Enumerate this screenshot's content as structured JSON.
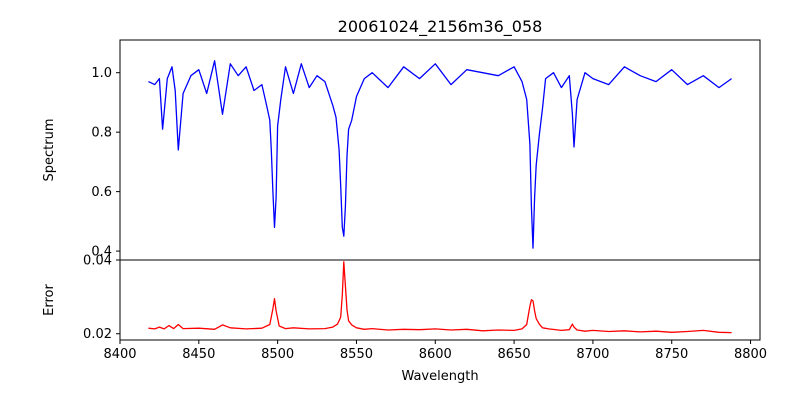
{
  "chart_data": {
    "type": "line",
    "title": "20061024_2156m36_058",
    "xlabel": "Wavelength",
    "xlim": [
      8400,
      8806
    ],
    "xticks": [
      "8400",
      "8450",
      "8500",
      "8550",
      "8600",
      "8650",
      "8700",
      "8750",
      "8800"
    ],
    "panels": [
      {
        "ylabel": "Spectrum",
        "ylim": [
          0.37,
          1.11
        ],
        "yticks": [
          "0.4",
          "0.6",
          "0.8",
          "1.0"
        ],
        "series": [
          {
            "color": "#0000ff",
            "x": [
              8418,
              8422,
              8425,
              8427,
              8430,
              8433,
              8435,
              8437,
              8440,
              8445,
              8450,
              8455,
              8460,
              8465,
              8470,
              8475,
              8480,
              8485,
              8490,
              8493,
              8495,
              8496,
              8497,
              8498,
              8499,
              8500,
              8502,
              8505,
              8510,
              8515,
              8520,
              8525,
              8530,
              8535,
              8537,
              8539,
              8540,
              8541,
              8542,
              8543,
              8544,
              8545,
              8547,
              8550,
              8555,
              8560,
              8570,
              8580,
              8590,
              8600,
              8610,
              8620,
              8630,
              8640,
              8650,
              8655,
              8658,
              8660,
              8661,
              8662,
              8663,
              8664,
              8666,
              8668,
              8670,
              8675,
              8680,
              8685,
              8687,
              8688,
              8690,
              8695,
              8700,
              8710,
              8720,
              8730,
              8740,
              8750,
              8760,
              8770,
              8780,
              8788
            ],
            "y": [
              0.97,
              0.96,
              0.98,
              0.81,
              0.98,
              1.02,
              0.94,
              0.74,
              0.93,
              0.99,
              1.01,
              0.93,
              1.04,
              0.86,
              1.03,
              0.99,
              1.02,
              0.94,
              0.96,
              0.89,
              0.84,
              0.74,
              0.6,
              0.48,
              0.58,
              0.82,
              0.91,
              1.02,
              0.93,
              1.03,
              0.95,
              0.99,
              0.97,
              0.89,
              0.85,
              0.74,
              0.62,
              0.48,
              0.45,
              0.55,
              0.72,
              0.81,
              0.84,
              0.92,
              0.98,
              1.0,
              0.95,
              1.02,
              0.98,
              1.03,
              0.96,
              1.01,
              1.0,
              0.99,
              1.02,
              0.97,
              0.91,
              0.76,
              0.55,
              0.41,
              0.58,
              0.69,
              0.79,
              0.88,
              0.98,
              1.0,
              0.95,
              0.99,
              0.86,
              0.75,
              0.91,
              1.0,
              0.98,
              0.96,
              1.02,
              0.99,
              0.97,
              1.01,
              0.96,
              0.99,
              0.95,
              0.98
            ]
          }
        ]
      },
      {
        "ylabel": "Error",
        "ylim": [
          0.0183,
          0.04
        ],
        "yticks": [
          "0.02",
          "0.04"
        ],
        "series": [
          {
            "color": "#ff0000",
            "x": [
              8418,
              8422,
              8425,
              8428,
              8431,
              8434,
              8437,
              8440,
              8450,
              8460,
              8465,
              8470,
              8480,
              8490,
              8495,
              8497,
              8498,
              8499,
              8501,
              8505,
              8510,
              8520,
              8530,
              8535,
              8538,
              8540,
              8541,
              8542,
              8543,
              8544,
              8545,
              8547,
              8550,
              8555,
              8560,
              8570,
              8580,
              8590,
              8600,
              8610,
              8620,
              8630,
              8640,
              8650,
              8655,
              8658,
              8660,
              8661,
              8662,
              8663,
              8664,
              8666,
              8668,
              8672,
              8680,
              8685,
              8687,
              8688,
              8690,
              8695,
              8700,
              8710,
              8720,
              8730,
              8740,
              8750,
              8760,
              8770,
              8780,
              8788
            ],
            "y": [
              0.0215,
              0.0213,
              0.0218,
              0.0213,
              0.0222,
              0.0214,
              0.0225,
              0.0214,
              0.0215,
              0.0212,
              0.0224,
              0.0216,
              0.0213,
              0.0215,
              0.0225,
              0.0268,
              0.0295,
              0.0262,
              0.0221,
              0.0214,
              0.0216,
              0.0213,
              0.0214,
              0.0218,
              0.0226,
              0.0245,
              0.0305,
              0.0395,
              0.033,
              0.0265,
              0.0235,
              0.0224,
              0.0216,
              0.0212,
              0.0214,
              0.021,
              0.0212,
              0.0211,
              0.0213,
              0.021,
              0.0212,
              0.0208,
              0.021,
              0.0209,
              0.0213,
              0.0225,
              0.0275,
              0.0292,
              0.0289,
              0.0262,
              0.0241,
              0.0226,
              0.0216,
              0.0213,
              0.0209,
              0.0211,
              0.0226,
              0.0218,
              0.021,
              0.0207,
              0.0209,
              0.0206,
              0.0208,
              0.0205,
              0.0207,
              0.0204,
              0.0206,
              0.0209,
              0.0204,
              0.0203
            ]
          }
        ]
      }
    ]
  }
}
